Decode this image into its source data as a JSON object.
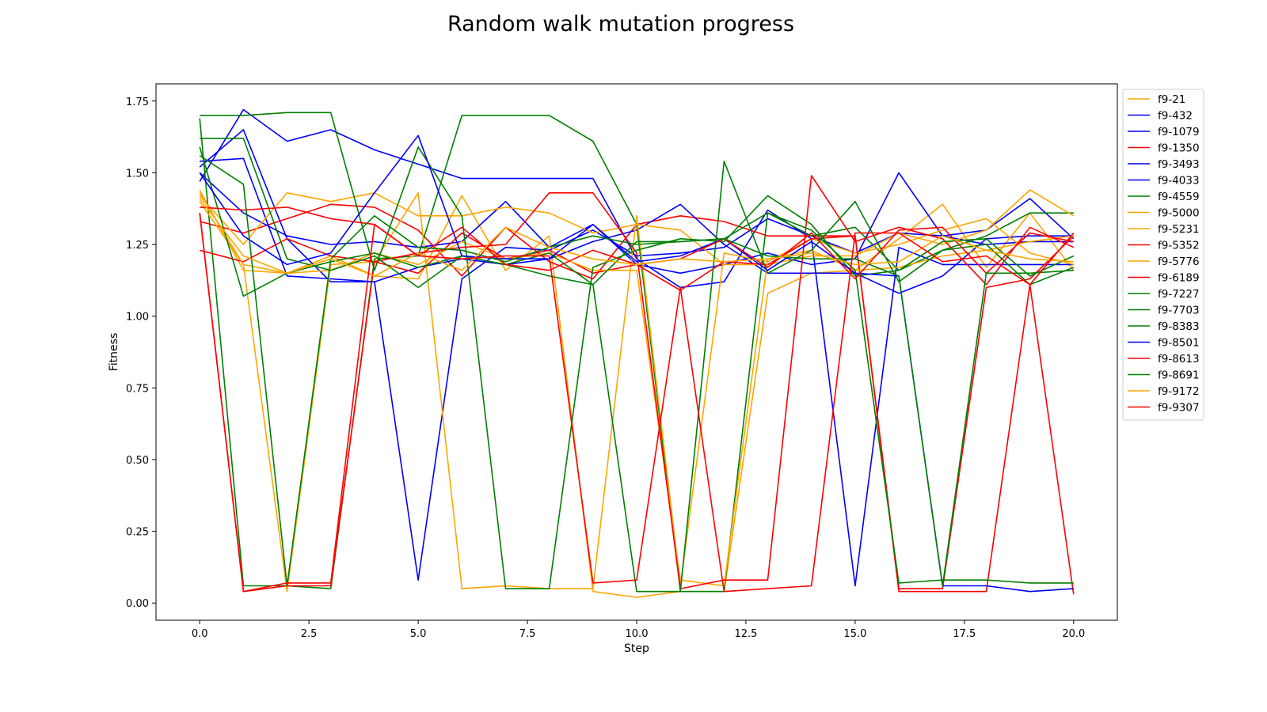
{
  "chart_data": {
    "type": "line",
    "title": "Random walk mutation progress",
    "xlabel": "Step",
    "ylabel": "Fitness",
    "xlim": [
      -1,
      21
    ],
    "ylim": [
      -0.06,
      1.81
    ],
    "xticks": [
      "0.0",
      "2.5",
      "5.0",
      "7.5",
      "10.0",
      "12.5",
      "15.0",
      "17.5",
      "20.0"
    ],
    "yticks": [
      "0.00",
      "0.25",
      "0.50",
      "0.75",
      "1.00",
      "1.25",
      "1.50",
      "1.75"
    ],
    "grid": false,
    "legend_position": "right-outside",
    "x": [
      0,
      1,
      2,
      3,
      4,
      5,
      6,
      7,
      8,
      9,
      10,
      11,
      12,
      13,
      14,
      15,
      16,
      17,
      18,
      19,
      20
    ],
    "series": [
      {
        "name": "f9-21",
        "color": "#FFA500",
        "values": [
          1.44,
          1.16,
          1.15,
          1.21,
          1.14,
          1.13,
          1.42,
          1.16,
          1.28,
          0.04,
          0.02,
          0.04,
          0.04,
          1.08,
          1.15,
          1.16,
          1.27,
          1.39,
          1.17,
          1.36,
          1.16
        ]
      },
      {
        "name": "f9-432",
        "color": "#0000FF",
        "values": [
          1.52,
          1.65,
          1.27,
          1.12,
          1.12,
          0.08,
          1.13,
          1.24,
          1.23,
          1.3,
          1.21,
          1.22,
          1.24,
          1.34,
          1.28,
          1.22,
          1.29,
          1.28,
          1.3,
          1.41,
          1.27
        ]
      },
      {
        "name": "f9-1079",
        "color": "#0000FF",
        "values": [
          1.47,
          1.72,
          1.61,
          1.65,
          1.58,
          1.53,
          1.48,
          1.48,
          1.48,
          1.48,
          1.2,
          1.1,
          1.12,
          1.37,
          1.27,
          0.06,
          1.24,
          1.18,
          1.18,
          1.18,
          1.18
        ]
      },
      {
        "name": "f9-1350",
        "color": "#FF0000",
        "values": [
          1.33,
          1.29,
          1.34,
          1.39,
          1.38,
          1.3,
          1.14,
          1.31,
          1.19,
          1.13,
          1.32,
          1.35,
          1.33,
          1.28,
          1.28,
          1.28,
          0.04,
          0.04,
          0.04,
          1.11,
          0.03
        ]
      },
      {
        "name": "f9-3493",
        "color": "#0000FF",
        "values": [
          1.54,
          1.55,
          1.14,
          1.13,
          1.12,
          1.17,
          1.2,
          1.18,
          1.2,
          1.26,
          1.3,
          1.39,
          1.25,
          1.15,
          1.15,
          1.15,
          1.08,
          1.14,
          1.27,
          1.28,
          1.28
        ]
      },
      {
        "name": "f9-4033",
        "color": "#0000FF",
        "values": [
          1.5,
          1.36,
          1.28,
          1.25,
          1.26,
          1.24,
          1.26,
          1.4,
          1.24,
          1.32,
          1.18,
          1.15,
          1.18,
          1.22,
          1.18,
          1.2,
          1.5,
          1.28,
          1.25,
          1.26,
          1.26
        ]
      },
      {
        "name": "f9-4559",
        "color": "#008000",
        "values": [
          1.69,
          0.06,
          0.06,
          0.05,
          1.2,
          1.21,
          1.7,
          1.7,
          1.7,
          1.61,
          1.32,
          0.04,
          0.04,
          1.36,
          1.28,
          1.31,
          1.16,
          1.23,
          1.28,
          1.36,
          1.36
        ]
      },
      {
        "name": "f9-5000",
        "color": "#FFA500",
        "values": [
          1.42,
          1.25,
          1.43,
          1.4,
          1.43,
          1.35,
          1.35,
          1.38,
          1.36,
          1.29,
          1.32,
          1.3,
          1.18,
          1.18,
          1.21,
          1.21,
          1.29,
          1.25,
          1.3,
          1.44,
          1.35
        ]
      },
      {
        "name": "f9-5231",
        "color": "#FFA500",
        "values": [
          1.4,
          1.18,
          0.04,
          1.18,
          1.19,
          1.43,
          0.05,
          0.06,
          0.05,
          0.05,
          1.35,
          0.06,
          1.22,
          1.19,
          1.27,
          1.22,
          1.25,
          1.3,
          1.34,
          1.22,
          1.18
        ]
      },
      {
        "name": "f9-5352",
        "color": "#FF0000",
        "values": [
          1.23,
          1.19,
          1.27,
          1.21,
          1.19,
          1.15,
          1.29,
          1.2,
          1.23,
          1.15,
          1.18,
          1.09,
          1.19,
          1.18,
          1.27,
          1.28,
          0.05,
          0.05,
          1.1,
          1.13,
          1.28
        ]
      },
      {
        "name": "f9-5776",
        "color": "#FFA500",
        "values": [
          1.43,
          1.18,
          1.15,
          1.16,
          1.22,
          1.18,
          1.26,
          1.2,
          1.22,
          1.16,
          1.16,
          0.08,
          0.06,
          1.2,
          1.23,
          1.16,
          1.17,
          1.21,
          1.23,
          1.26,
          1.28
        ]
      },
      {
        "name": "f9-6189",
        "color": "#FF0000",
        "values": [
          1.36,
          0.04,
          0.06,
          0.06,
          1.19,
          1.22,
          1.24,
          1.25,
          1.43,
          1.43,
          1.22,
          0.05,
          0.08,
          0.08,
          1.49,
          1.26,
          1.31,
          1.27,
          1.11,
          1.31,
          1.24
        ]
      },
      {
        "name": "f9-7227",
        "color": "#008000",
        "values": [
          1.59,
          1.07,
          1.15,
          1.19,
          1.22,
          1.17,
          1.21,
          1.18,
          1.22,
          1.11,
          1.26,
          1.26,
          1.27,
          1.36,
          1.3,
          1.16,
          0.07,
          0.08,
          0.08,
          0.07,
          0.07
        ]
      },
      {
        "name": "f9-7703",
        "color": "#008000",
        "values": [
          1.62,
          1.62,
          1.2,
          1.16,
          1.21,
          1.1,
          1.21,
          1.18,
          1.14,
          1.11,
          0.04,
          0.04,
          1.54,
          1.15,
          1.23,
          1.4,
          1.12,
          1.23,
          1.25,
          1.11,
          1.17
        ]
      },
      {
        "name": "f9-8383",
        "color": "#008000",
        "values": [
          1.7,
          1.7,
          1.71,
          1.71,
          1.16,
          1.59,
          1.35,
          0.05,
          0.05,
          1.17,
          1.23,
          1.27,
          1.26,
          1.42,
          1.32,
          1.14,
          1.16,
          1.26,
          1.27,
          1.14,
          1.21
        ]
      },
      {
        "name": "f9-8501",
        "color": "#0000FF",
        "values": [
          1.5,
          1.28,
          1.18,
          1.22,
          1.43,
          1.63,
          1.21,
          1.2,
          1.2,
          1.32,
          1.19,
          1.21,
          1.27,
          1.16,
          1.26,
          1.15,
          1.14,
          0.06,
          0.06,
          0.04,
          0.05
        ]
      },
      {
        "name": "f9-8613",
        "color": "#FF0000",
        "values": [
          1.38,
          1.37,
          1.38,
          1.34,
          1.32,
          1.21,
          1.31,
          1.18,
          1.16,
          1.23,
          1.18,
          1.2,
          1.27,
          1.17,
          1.29,
          1.13,
          1.3,
          1.31,
          1.15,
          1.29,
          1.26
        ]
      },
      {
        "name": "f9-8691",
        "color": "#008000",
        "values": [
          1.56,
          1.46,
          0.06,
          1.2,
          1.35,
          1.24,
          1.23,
          1.19,
          1.24,
          1.28,
          1.25,
          1.26,
          1.27,
          1.21,
          1.2,
          1.2,
          1.14,
          0.06,
          1.15,
          1.15,
          1.16
        ]
      },
      {
        "name": "f9-9172",
        "color": "#FFA500",
        "values": [
          1.41,
          1.21,
          1.15,
          1.2,
          1.14,
          1.22,
          1.16,
          1.31,
          1.24,
          1.2,
          1.18,
          1.2,
          1.19,
          1.2,
          1.22,
          1.18,
          1.19,
          1.28,
          1.23,
          1.2,
          1.19
        ]
      },
      {
        "name": "f9-9307",
        "color": "#FF0000",
        "values": [
          1.36,
          0.04,
          0.07,
          0.07,
          1.32,
          1.21,
          1.2,
          1.21,
          1.21,
          0.07,
          0.08,
          1.1,
          0.04,
          0.05,
          0.06,
          1.29,
          1.29,
          1.19,
          1.21,
          1.11,
          1.29
        ]
      }
    ]
  }
}
